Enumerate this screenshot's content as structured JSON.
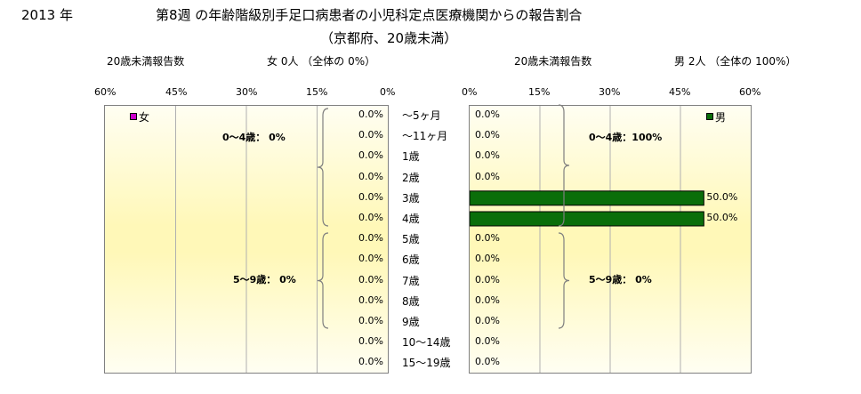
{
  "year": "2013 年",
  "title": "第8週 の年齢階級別手足口病患者の小児科定点医療機関からの報告割合",
  "subtitle": "（京都府、20歳未満）",
  "left_header": {
    "label": "20歳未満報告数",
    "summary": "女  0人 （全体の   0%）"
  },
  "right_header": {
    "label": "20歳未満報告数",
    "summary": "男  2人 （全体の   100%）"
  },
  "left_ticks": [
    "60%",
    "45%",
    "30%",
    "15%",
    "0%"
  ],
  "right_ticks": [
    "0%",
    "15%",
    "30%",
    "45%",
    "60%"
  ],
  "colors": {
    "female": "#cc00cc",
    "male": "#0a6e0a",
    "grid": "#b0b0b0",
    "bracket": "#7f7f7f"
  },
  "chart_data": {
    "type": "bar",
    "xlim": [
      0,
      60
    ],
    "categories": [
      "～5ヶ月",
      "～11ヶ月",
      "1歳",
      "2歳",
      "3歳",
      "4歳",
      "5歳",
      "6歳",
      "7歳",
      "8歳",
      "9歳",
      "10～14歳",
      "15～19歳"
    ],
    "series": [
      {
        "name": "女",
        "values": [
          0,
          0,
          0,
          0,
          0,
          0,
          0,
          0,
          0,
          0,
          0,
          0,
          0
        ],
        "labels": [
          "0.0%",
          "0.0%",
          "0.0%",
          "0.0%",
          "0.0%",
          "0.0%",
          "0.0%",
          "0.0%",
          "0.0%",
          "0.0%",
          "0.0%",
          "0.0%",
          "0.0%"
        ]
      },
      {
        "name": "男",
        "values": [
          0,
          0,
          0,
          0,
          50,
          50,
          0,
          0,
          0,
          0,
          0,
          0,
          0
        ],
        "labels": [
          "0.0%",
          "0.0%",
          "0.0%",
          "0.0%",
          "50.0%",
          "50.0%",
          "0.0%",
          "0.0%",
          "0.0%",
          "0.0%",
          "0.0%",
          "0.0%",
          "0.0%"
        ]
      }
    ],
    "group_labels": {
      "female": [
        "0～4歳：  0%",
        "5～9歳：  0%"
      ],
      "male": [
        "0～4歳：100%",
        "5～9歳：  0%"
      ]
    }
  }
}
